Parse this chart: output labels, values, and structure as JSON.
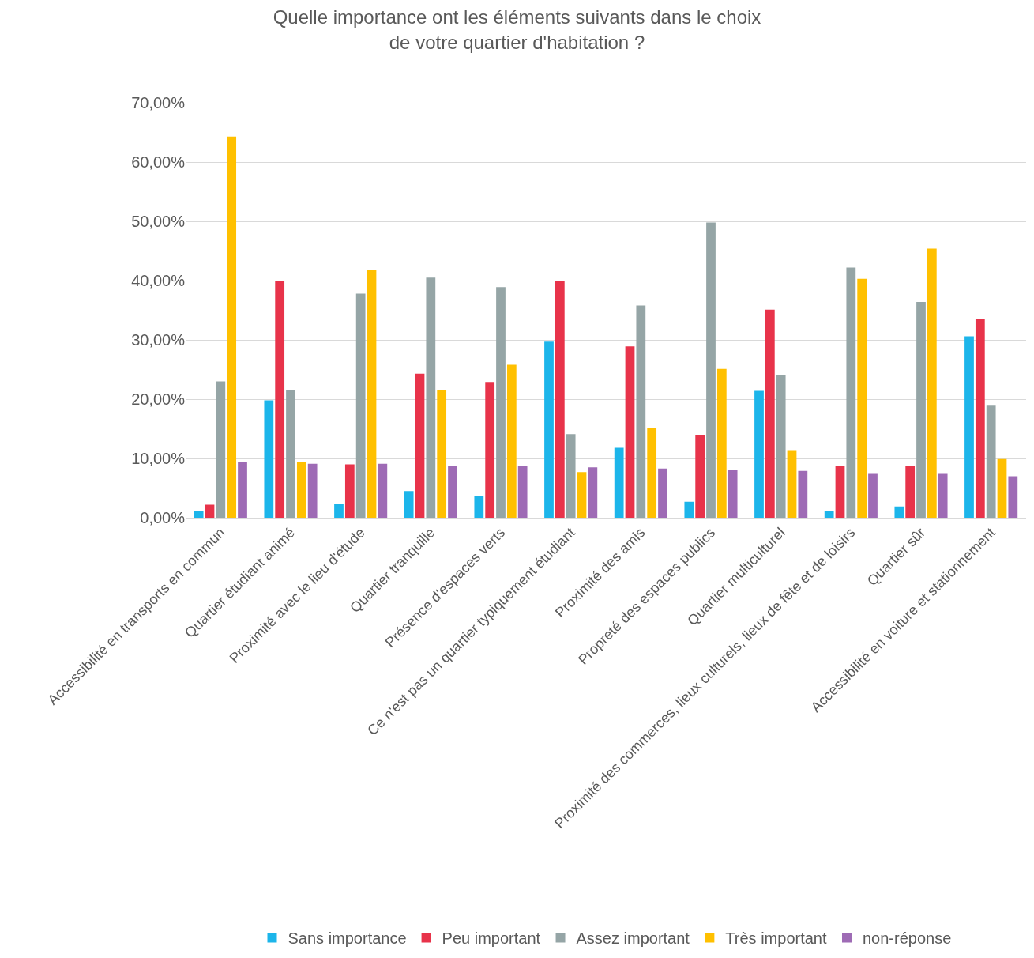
{
  "chart_data": {
    "type": "bar",
    "title": "Quelle importance ont les éléments suivants dans le choix\nde votre quartier d'habitation ?",
    "categories": [
      "Accessibilité en transports en commun",
      "Quartier étudiant animé",
      "Proximité avec le lieu d'étude",
      "Quartier tranquille",
      "Présence d'espaces verts",
      "Ce n'est pas un quartier typiquement étudiant",
      "Proximité des amis",
      "Propreté des espaces publics",
      "Quartier multiculturel",
      "Proximité des commerces, lieux culturels, lieux de fête et de loisirs",
      "Quartier sûr",
      "Accessibilité en voiture et stationnement"
    ],
    "series": [
      {
        "name": "Sans importance",
        "color": "#1cb5ea",
        "values": [
          1.1,
          19.8,
          2.3,
          4.5,
          3.6,
          29.7,
          11.8,
          2.7,
          21.4,
          1.2,
          1.9,
          30.6
        ]
      },
      {
        "name": "Peu important",
        "color": "#e8334a",
        "values": [
          2.2,
          40.0,
          9.0,
          24.3,
          22.9,
          39.9,
          28.9,
          14.0,
          35.1,
          8.8,
          8.8,
          33.5
        ]
      },
      {
        "name": "Assez important",
        "color": "#95a5a6",
        "values": [
          23.0,
          21.6,
          37.8,
          40.5,
          38.9,
          14.1,
          35.8,
          49.8,
          24.0,
          42.2,
          36.4,
          18.9
        ]
      },
      {
        "name": "Très important",
        "color": "#ffc000",
        "values": [
          64.3,
          9.4,
          41.8,
          21.6,
          25.8,
          7.7,
          15.2,
          25.1,
          11.4,
          40.3,
          45.4,
          9.9
        ]
      },
      {
        "name": "non-réponse",
        "color": "#9e6bb5",
        "values": [
          9.4,
          9.1,
          9.1,
          8.8,
          8.7,
          8.5,
          8.3,
          8.1,
          7.9,
          7.4,
          7.4,
          7.0
        ]
      }
    ],
    "ylim": [
      0,
      70
    ],
    "yticks": [
      {
        "value": 0,
        "label": "0,00%"
      },
      {
        "value": 10,
        "label": "10,00%"
      },
      {
        "value": 20,
        "label": "20,00%"
      },
      {
        "value": 30,
        "label": "30,00%"
      },
      {
        "value": 40,
        "label": "40,00%"
      },
      {
        "value": 50,
        "label": "50,00%"
      },
      {
        "value": 60,
        "label": "60,00%"
      },
      {
        "value": 70,
        "label": "70,00%"
      }
    ],
    "grid": "y",
    "legend": "bottom"
  }
}
